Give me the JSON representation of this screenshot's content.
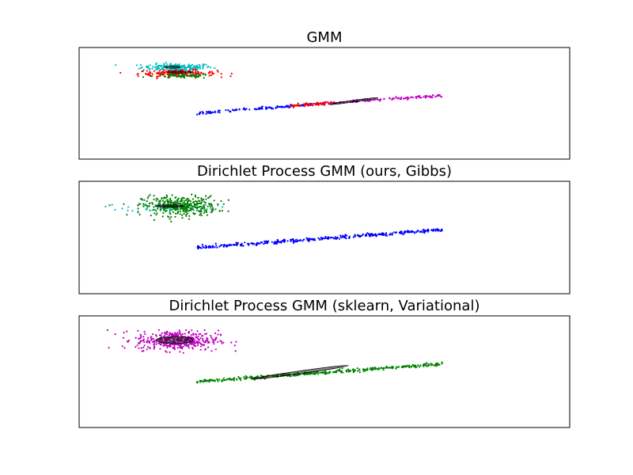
{
  "chart_data": [
    {
      "type": "scatter",
      "title": "GMM",
      "xlim": [
        0,
        10
      ],
      "ylim": [
        -2,
        3
      ],
      "xticks": false,
      "yticks": false,
      "clusters": [
        {
          "color": "#00bfbf",
          "center": [
            2.0,
            2.12
          ],
          "spread": [
            0.36,
            0.08
          ],
          "n": 180
        },
        {
          "color": "#ff0000",
          "center": [
            2.0,
            1.85
          ],
          "spread": [
            0.4,
            0.07
          ],
          "n": 170
        },
        {
          "color": "#008000",
          "center": [
            2.1,
            1.72
          ],
          "spread": [
            0.3,
            0.05
          ],
          "n": 70
        },
        {
          "color": "#0000ff",
          "line": [
            [
              2.4,
              0.05
            ],
            [
              5.0,
              0.5
            ]
          ],
          "perp_spread": 0.03,
          "n": 140
        },
        {
          "color": "#ff0000",
          "line": [
            [
              4.3,
              0.38
            ],
            [
              5.2,
              0.52
            ]
          ],
          "perp_spread": 0.03,
          "n": 80
        },
        {
          "color": "#bf00bf",
          "line": [
            [
              5.0,
              0.5
            ],
            [
              7.4,
              0.85
            ]
          ],
          "perp_spread": 0.03,
          "n": 120
        }
      ],
      "ellipses": [
        {
          "center": [
            1.9,
            2.12
          ],
          "width": 0.32,
          "height": 0.09,
          "angle": 0
        },
        {
          "center": [
            2.05,
            1.9
          ],
          "width": 0.52,
          "height": 0.1,
          "angle": 0
        },
        {
          "center": [
            5.6,
            0.6
          ],
          "width": 1.0,
          "height": 0.08,
          "angle": 8
        }
      ]
    },
    {
      "type": "scatter",
      "title": "Dirichlet Process GMM (ours, Gibbs)",
      "xlim": [
        0,
        10
      ],
      "ylim": [
        -2,
        3
      ],
      "xticks": false,
      "yticks": false,
      "clusters": [
        {
          "color": "#00bfbf",
          "center": [
            1.85,
            1.85
          ],
          "spread": [
            0.45,
            0.1
          ],
          "n": 60
        },
        {
          "color": "#008000",
          "center": [
            2.05,
            1.9
          ],
          "spread": [
            0.38,
            0.22
          ],
          "n": 380
        },
        {
          "color": "#0000ff",
          "line": [
            [
              2.4,
              0.05
            ],
            [
              7.4,
              0.85
            ]
          ],
          "perp_spread": 0.035,
          "n": 380
        }
      ],
      "ellipses": [
        {
          "center": [
            1.85,
            1.9
          ],
          "width": 0.55,
          "height": 0.1,
          "angle": 0
        }
      ]
    },
    {
      "type": "scatter",
      "title": "Dirichlet Process GMM (sklearn, Variational)",
      "xlim": [
        0,
        10
      ],
      "ylim": [
        -2,
        3
      ],
      "xticks": false,
      "yticks": false,
      "clusters": [
        {
          "color": "#bf00bf",
          "center": [
            2.0,
            1.9
          ],
          "spread": [
            0.42,
            0.22
          ],
          "n": 430
        },
        {
          "color": "#008000",
          "line": [
            [
              2.4,
              0.05
            ],
            [
              7.4,
              0.85
            ]
          ],
          "perp_spread": 0.035,
          "n": 380
        }
      ],
      "ellipses": [
        {
          "center": [
            1.95,
            1.92
          ],
          "width": 0.75,
          "height": 0.32,
          "angle": 0
        },
        {
          "center": [
            4.5,
            0.47
          ],
          "width": 2.0,
          "height": 0.12,
          "angle": 8
        }
      ]
    }
  ]
}
